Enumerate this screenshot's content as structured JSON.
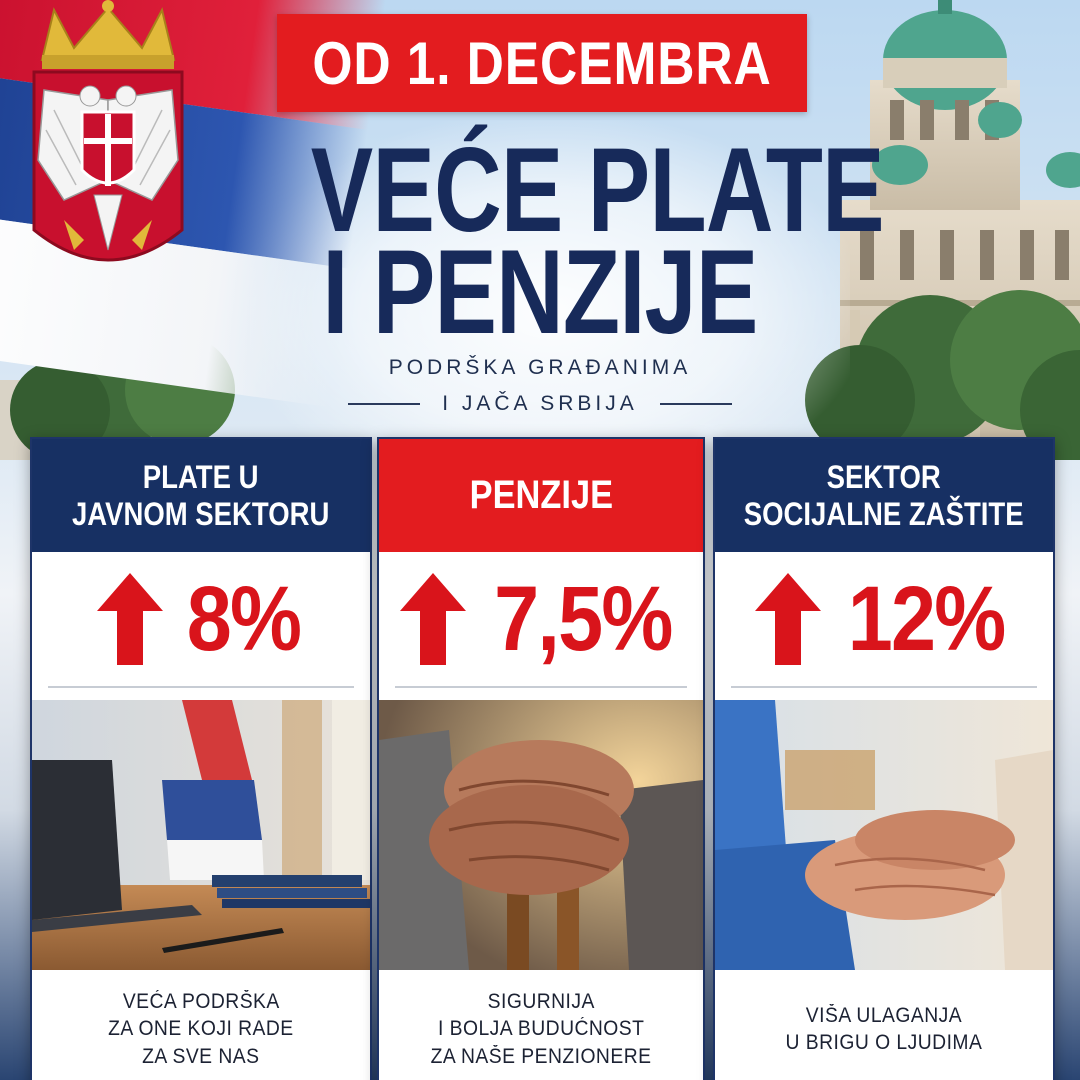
{
  "header": {
    "date_banner": "OD 1. DECEMBRA",
    "headline_line1": "VEĆE PLATE",
    "headline_line2": "I PENZIJE",
    "subtitle_line1": "PODRŠKA GRAĐANIMA",
    "subtitle_line2": "I JAČA SRBIJA"
  },
  "cards": [
    {
      "title_line1": "PLATE U",
      "title_line2": "JAVNOM SEKTORU",
      "percent": "8%",
      "footer_line1": "VEĆA PODRŠKA",
      "footer_line2": "ZA ONE KOJI RADE",
      "footer_line3": "ZA SVE NAS"
    },
    {
      "title_line1": "PENZIJE",
      "percent": "7,5%",
      "footer_line1": "SIGURNIJA",
      "footer_line2": "I BOLJA BUDUĆNOST",
      "footer_line3": "ZA NAŠE PENZIONERE"
    },
    {
      "title_line1": "SEKTOR",
      "title_line2": "SOCIJALNE ZAŠTITE",
      "percent": "12%",
      "footer_line1": "VIŠA ULAGANJA",
      "footer_line2": "U BRIGU O LJUDIMA"
    }
  ],
  "colors": {
    "red": "#e31c1f",
    "navy": "#173063",
    "percent_red": "#d9141b"
  },
  "icons": [
    "serbian-coat-of-arms-icon",
    "up-arrow-icon"
  ]
}
